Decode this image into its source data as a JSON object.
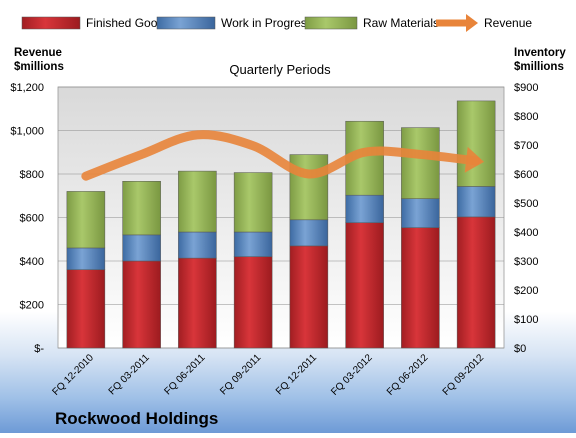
{
  "company": "Rockwood Holdings",
  "chart_data": {
    "type": "bar",
    "stacked": true,
    "title": "Quarterly Periods",
    "categories": [
      "FQ 12-2010",
      "FQ 03-2011",
      "FQ 06-2011",
      "FQ 09-2011",
      "FQ 12-2011",
      "FQ 03-2012",
      "FQ 06-2012",
      "FQ 09-2012"
    ],
    "left_axis": {
      "label_line1": "Revenue",
      "label_line2": "$millions",
      "ylim": [
        0,
        1200
      ],
      "ticks": [
        0,
        200,
        400,
        600,
        800,
        1000,
        1200
      ],
      "tick_labels": [
        "$-",
        "$200",
        "$400",
        "$600",
        "$800",
        "$1,000",
        "$1,200"
      ]
    },
    "right_axis": {
      "label_line1": "Inventory",
      "label_line2": "$millions",
      "ylim": [
        0,
        900
      ],
      "ticks": [
        0,
        100,
        200,
        300,
        400,
        500,
        600,
        700,
        800,
        900
      ],
      "tick_labels": [
        "$0",
        "$100",
        "$200",
        "$300",
        "$400",
        "$500",
        "$600",
        "$700",
        "$800",
        "$900"
      ]
    },
    "series": [
      {
        "name": "Finished Goods",
        "axis": "right",
        "color": "#c0282d",
        "values": [
          270,
          300,
          310,
          315,
          352,
          432,
          415,
          452
        ]
      },
      {
        "name": "Work in Progress",
        "axis": "right",
        "color": "#4f81bd",
        "values": [
          75,
          90,
          90,
          85,
          90,
          95,
          100,
          105
        ]
      },
      {
        "name": "Raw Materials",
        "axis": "right",
        "color": "#9bbb59",
        "values": [
          195,
          185,
          210,
          205,
          225,
          255,
          245,
          295
        ]
      },
      {
        "name": "Revenue",
        "axis": "left",
        "type": "line",
        "color": "#e8843a",
        "values": [
          790,
          890,
          980,
          930,
          800,
          900,
          890,
          860
        ]
      }
    ],
    "grid": true,
    "legend_position": "top"
  }
}
